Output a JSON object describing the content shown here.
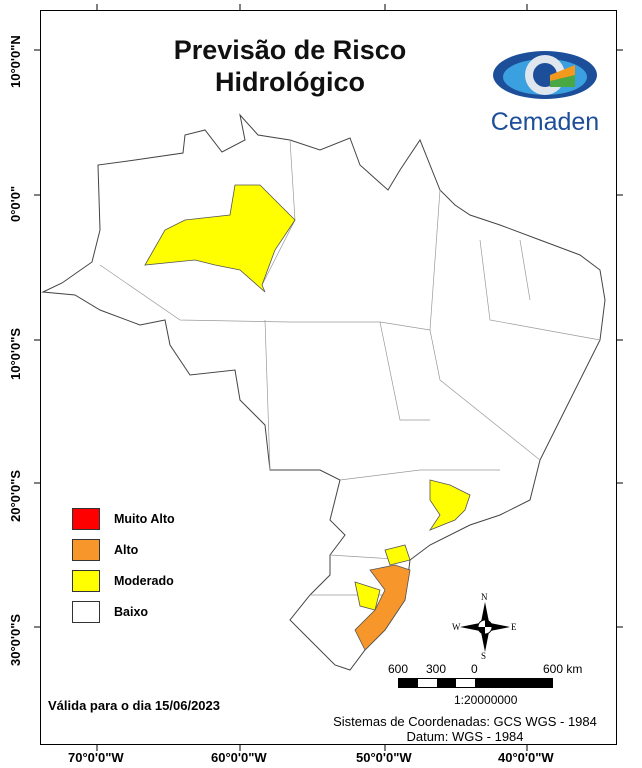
{
  "title": "Previsão de Risco Hidrológico",
  "title_lines": [
    "Previsão de Risco",
    "Hidrológico"
  ],
  "logo": {
    "text": "Cemaden",
    "colors": [
      "#1c4e9a",
      "#3aa0e0",
      "#f39a1e",
      "#4aa844"
    ]
  },
  "latitude_labels": [
    "10°0'0\"N",
    "0°0'0\"",
    "10°0'0\"S",
    "20°0'0\"S",
    "30°0'0\"S"
  ],
  "longitude_labels": [
    "70°0'0\"W",
    "60°0'0\"W",
    "50°0'0\"W",
    "40°0'0\"W"
  ],
  "legend": [
    {
      "label": "Muito Alto",
      "color": "#ff0000"
    },
    {
      "label": "Alto",
      "color": "#f7962a"
    },
    {
      "label": "Moderado",
      "color": "#ffff00"
    },
    {
      "label": "Baixo",
      "color": "#ffffff"
    }
  ],
  "compass": {
    "n": "N",
    "s": "S",
    "e": "E",
    "w": "W"
  },
  "scale_bar": {
    "ticks": [
      "600",
      "300",
      "0",
      "600 km"
    ],
    "ratio": "1:20000000"
  },
  "valid_date": "Válida para o dia 15/06/2023",
  "coordinate_system": "Sistemas de Coordenadas: GCS WGS - 1984",
  "datum": "Datum: WGS - 1984"
}
